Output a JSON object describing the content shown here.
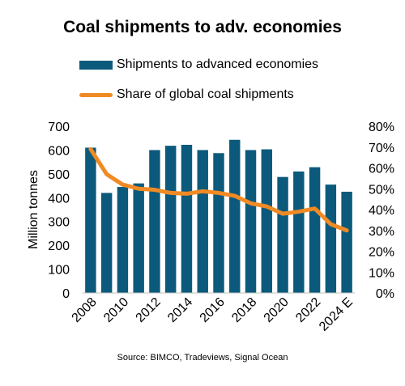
{
  "chart_data": {
    "type": "bar",
    "title": "Coal shipments to adv. economies",
    "ylabel": "Million tonnes",
    "ylim": [
      0,
      700
    ],
    "y2lim": [
      0,
      0.8
    ],
    "yticks": [
      "0",
      "100",
      "200",
      "300",
      "400",
      "500",
      "600",
      "700"
    ],
    "y2ticks": [
      "0%",
      "10%",
      "20%",
      "30%",
      "40%",
      "50%",
      "60%",
      "70%",
      "80%"
    ],
    "categories": [
      "2008",
      "2009",
      "2010",
      "2011",
      "2012",
      "2013",
      "2014",
      "2015",
      "2016",
      "2017",
      "2018",
      "2019",
      "2020",
      "2021",
      "2022",
      "2023",
      "2024 E"
    ],
    "xtick_labels": [
      "2008",
      "",
      "2010",
      "",
      "2012",
      "",
      "2014",
      "",
      "2016",
      "",
      "2018",
      "",
      "2020",
      "",
      "2022",
      "",
      "2024 E"
    ],
    "series": [
      {
        "name": "Shipments to advanced economies",
        "type": "bar",
        "axis": "left",
        "color": "#0b5a7c",
        "values": [
          610,
          420,
          445,
          460,
          600,
          618,
          622,
          600,
          587,
          643,
          600,
          603,
          487,
          510,
          528,
          455,
          425
        ]
      },
      {
        "name": "Share of global coal shipments",
        "type": "line",
        "axis": "right",
        "color": "#f08a24",
        "values": [
          0.69,
          0.57,
          0.52,
          0.5,
          0.495,
          0.48,
          0.476,
          0.488,
          0.48,
          0.466,
          0.43,
          0.415,
          0.38,
          0.39,
          0.405,
          0.33,
          0.3
        ]
      }
    ],
    "grid": false,
    "legend_position": "top"
  },
  "source": "Source: BIMCO, Tradeviews, Signal Ocean"
}
